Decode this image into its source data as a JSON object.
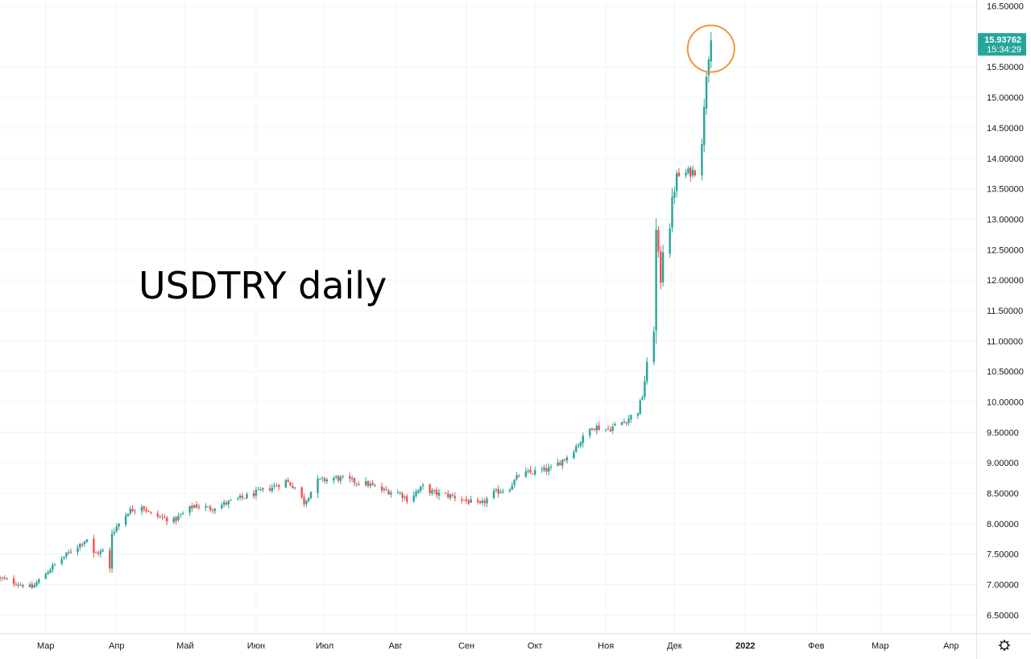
{
  "chart_data": {
    "type": "candlestick",
    "title": "",
    "annotation": "USDTRY daily",
    "y_axis": {
      "ticks": [
        "6.50000",
        "7.00000",
        "7.50000",
        "8.00000",
        "8.50000",
        "9.00000",
        "9.50000",
        "10.00000",
        "10.50000",
        "11.00000",
        "11.50000",
        "12.00000",
        "12.50000",
        "13.00000",
        "13.50000",
        "14.00000",
        "14.50000",
        "15.00000",
        "15.50000",
        "16.50000"
      ],
      "ylim": [
        6.2,
        16.6
      ]
    },
    "x_axis": {
      "labels": [
        "Мар",
        "Апр",
        "Май",
        "Июн",
        "Июл",
        "Авг",
        "Сен",
        "Окт",
        "Ноя",
        "Дек",
        "2022",
        "Фев",
        "Мар",
        "Апр"
      ],
      "label_dates": [
        "2021-03-01",
        "2021-04-01",
        "2021-05-01",
        "2021-06-01",
        "2021-07-01",
        "2021-08-01",
        "2021-09-01",
        "2021-10-01",
        "2021-11-01",
        "2021-12-01",
        "2022-01-01",
        "2022-02-01",
        "2022-03-01",
        "2022-04-01"
      ],
      "xlim": [
        "2021-02-09",
        "2022-04-12"
      ]
    },
    "last_price": {
      "value": "15.93762",
      "countdown": "15:34:29",
      "numeric": 15.93762
    },
    "highlight": {
      "date": "2021-12-17",
      "value": 15.8,
      "shape": "circle"
    },
    "grid": true,
    "colors": {
      "up": "#26a69a",
      "down": "#ef5350",
      "grid": "#f0f3fa",
      "highlight": "#f5933a",
      "price_tag": "#26a69a"
    },
    "anchors": [
      [
        "2021-02-09",
        7.1
      ],
      [
        "2021-02-23",
        6.95
      ],
      [
        "2021-03-04",
        7.3
      ],
      [
        "2021-03-12",
        7.55
      ],
      [
        "2021-03-19",
        7.75
      ],
      [
        "2021-03-22",
        7.5
      ],
      [
        "2021-03-26",
        7.55
      ],
      [
        "2021-03-29",
        7.25
      ],
      [
        "2021-03-30",
        7.85
      ],
      [
        "2021-04-06",
        8.2
      ],
      [
        "2021-04-12",
        8.3
      ],
      [
        "2021-04-16",
        8.15
      ],
      [
        "2021-04-26",
        8.05
      ],
      [
        "2021-05-05",
        8.3
      ],
      [
        "2021-05-12",
        8.25
      ],
      [
        "2021-05-20",
        8.35
      ],
      [
        "2021-05-28",
        8.45
      ],
      [
        "2021-06-08",
        8.6
      ],
      [
        "2021-06-14",
        8.7
      ],
      [
        "2021-06-18",
        8.6
      ],
      [
        "2021-06-22",
        8.35
      ],
      [
        "2021-06-28",
        8.7
      ],
      [
        "2021-07-06",
        8.75
      ],
      [
        "2021-07-20",
        8.65
      ],
      [
        "2021-07-26",
        8.55
      ],
      [
        "2021-08-03",
        8.5
      ],
      [
        "2021-08-06",
        8.4
      ],
      [
        "2021-08-13",
        8.6
      ],
      [
        "2021-08-18",
        8.5
      ],
      [
        "2021-08-26",
        8.45
      ],
      [
        "2021-09-07",
        8.3
      ],
      [
        "2021-09-13",
        8.5
      ],
      [
        "2021-09-20",
        8.6
      ],
      [
        "2021-09-24",
        8.8
      ],
      [
        "2021-10-01",
        8.85
      ],
      [
        "2021-10-08",
        8.9
      ],
      [
        "2021-10-15",
        9.1
      ],
      [
        "2021-10-22",
        9.4
      ],
      [
        "2021-10-26",
        9.6
      ],
      [
        "2021-11-02",
        9.55
      ],
      [
        "2021-11-10",
        9.7
      ],
      [
        "2021-11-15",
        9.85
      ],
      [
        "2021-11-17",
        10.1
      ],
      [
        "2021-11-19",
        10.6
      ],
      [
        "2021-11-22",
        11.2
      ],
      [
        "2021-11-23",
        12.8
      ],
      [
        "2021-11-25",
        12.0
      ],
      [
        "2021-11-26",
        12.5
      ],
      [
        "2021-11-29",
        12.9
      ],
      [
        "2021-11-30",
        13.3
      ],
      [
        "2021-12-02",
        13.7
      ],
      [
        "2021-12-06",
        13.75
      ],
      [
        "2021-12-10",
        13.8
      ],
      [
        "2021-12-13",
        14.3
      ],
      [
        "2021-12-14",
        14.8
      ],
      [
        "2021-12-15",
        15.4
      ],
      [
        "2021-12-16",
        15.7
      ],
      [
        "2021-12-17",
        15.93762
      ]
    ]
  }
}
